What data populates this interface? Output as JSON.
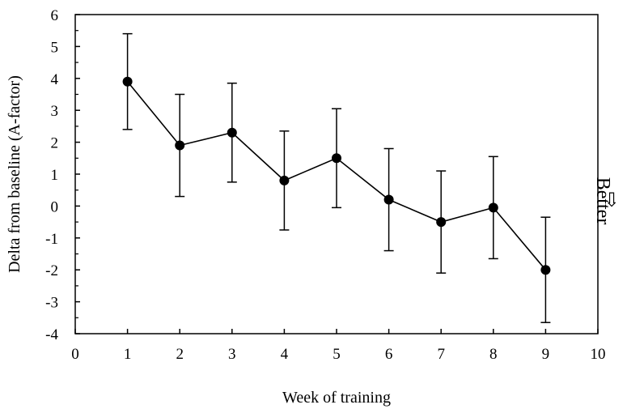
{
  "chart_data": {
    "type": "line",
    "title": "",
    "xlabel": "Week of training",
    "ylabel": "Delta from baseline (A-factor)",
    "xlim": [
      0,
      10
    ],
    "ylim": [
      -4,
      6
    ],
    "x_ticks": [
      "0",
      "1",
      "2",
      "3",
      "4",
      "5",
      "6",
      "7",
      "8",
      "9",
      "10"
    ],
    "y_ticks": [
      "6",
      "5",
      "4",
      "3",
      "2",
      "1",
      "0",
      "-1",
      "-2",
      "-3",
      "-4"
    ],
    "grid": false,
    "legend": "none",
    "series": [
      {
        "x": [
          1,
          2,
          3,
          4,
          5,
          6,
          7,
          8,
          9
        ],
        "y": [
          3.9,
          1.9,
          2.3,
          0.8,
          1.5,
          0.2,
          -0.5,
          -0.05,
          -2.0
        ],
        "error": [
          1.5,
          1.6,
          1.55,
          1.55,
          1.55,
          1.6,
          1.6,
          1.6,
          1.65
        ]
      }
    ],
    "annotation": {
      "text": "Better",
      "arrow": "⇩"
    },
    "colors": {
      "line": "#000000",
      "marker": "#000000"
    }
  }
}
